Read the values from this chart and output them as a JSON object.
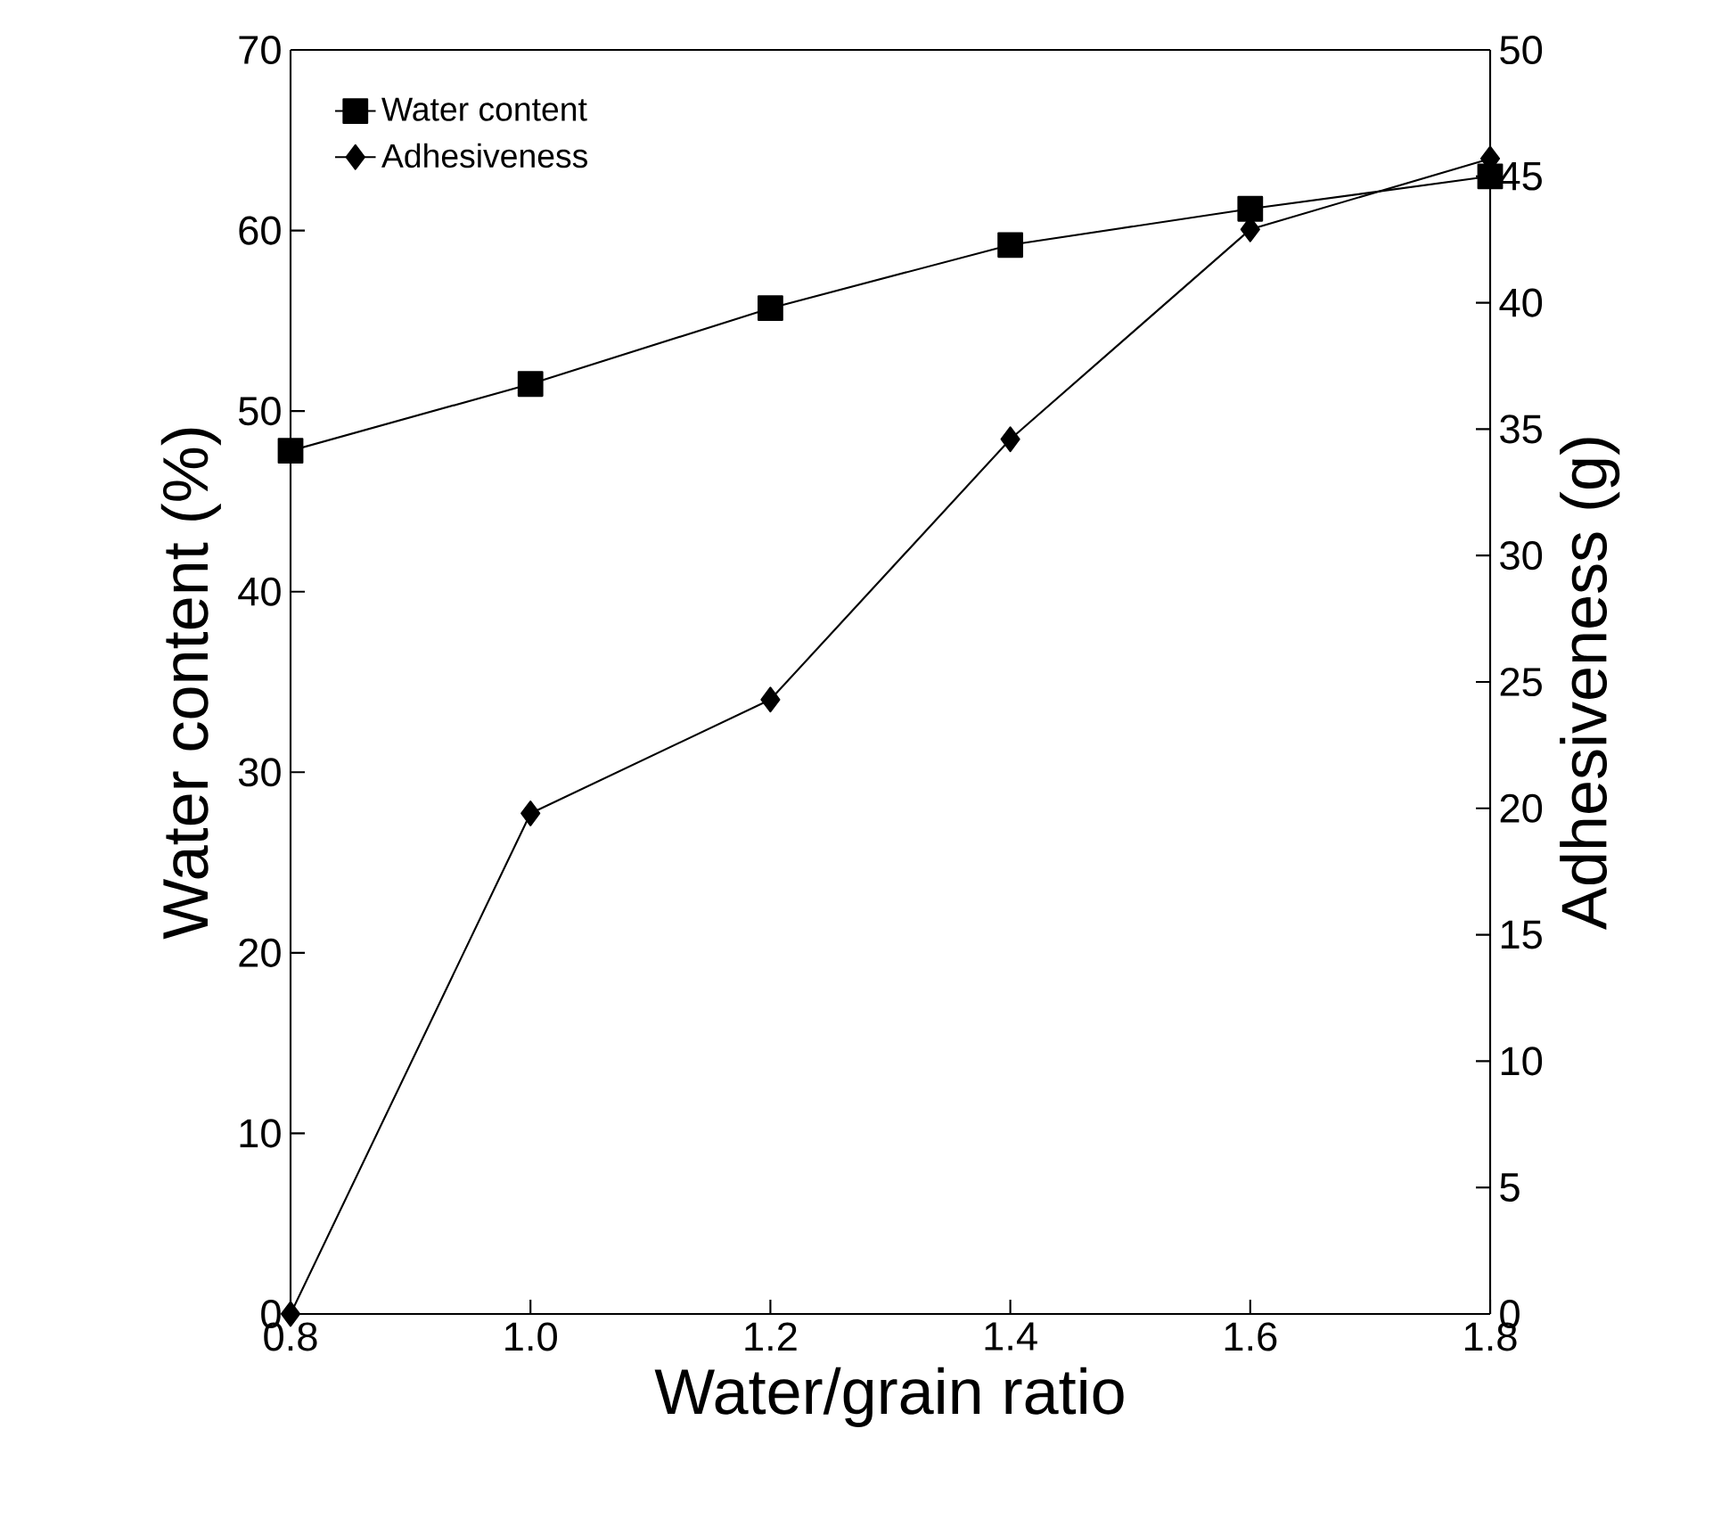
{
  "chart_data": {
    "type": "line",
    "xlabel": "Water/grain ratio",
    "ylabel": "Water content (%)",
    "y2label": "Adhesiveness (g)",
    "x": [
      0.8,
      1.0,
      1.2,
      1.4,
      1.6,
      1.8
    ],
    "series": [
      {
        "name": "Water content",
        "color": "#000000",
        "marker": "square",
        "values": [
          47.8,
          51.5,
          55.7,
          59.2,
          61.2,
          63.0
        ]
      },
      {
        "name": "Adhesiveness",
        "color": "#000000",
        "marker": "diamond",
        "axis": "y2",
        "values": [
          0,
          19.8,
          24.3,
          34.6,
          42.9,
          45.7
        ]
      }
    ],
    "xlim": [
      0.8,
      1.8
    ],
    "xticks": [
      {
        "value": 0.8,
        "label": "0.8"
      },
      {
        "value": 1.0,
        "label": "1.0"
      },
      {
        "value": 1.2,
        "label": "1.2"
      },
      {
        "value": 1.4,
        "label": "1.4"
      },
      {
        "value": 1.6,
        "label": "1.6"
      },
      {
        "value": 1.8,
        "label": "1.8"
      }
    ],
    "ylim": [
      0,
      70
    ],
    "yticks": [
      0,
      10,
      20,
      30,
      40,
      50,
      60,
      70
    ],
    "y2lim": [
      0,
      50
    ],
    "y2ticks": [
      0,
      5,
      10,
      15,
      20,
      25,
      30,
      35,
      40,
      45,
      50
    ],
    "grid": false,
    "legend": "top left",
    "line_style": "solid"
  }
}
